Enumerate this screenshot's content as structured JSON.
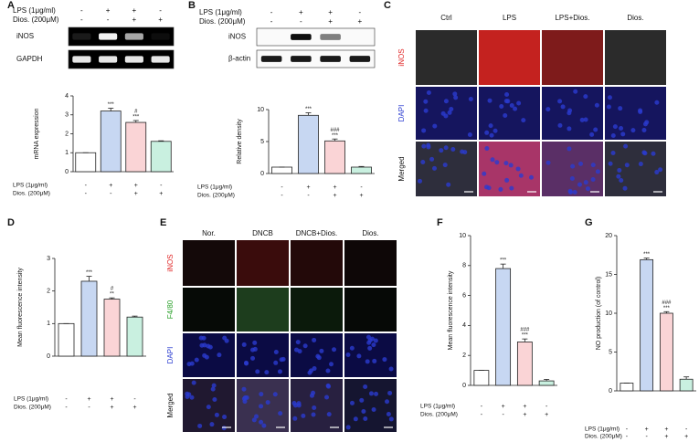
{
  "blots": [
    {
      "panel": "A",
      "treatments": [
        {
          "label": "LPS (1μg/ml)",
          "signs": [
            "-",
            "+",
            "+",
            "-"
          ]
        },
        {
          "label": "Dios. (200μM)",
          "signs": [
            "-",
            "-",
            "+",
            "+"
          ]
        }
      ],
      "rows": [
        "iNOS",
        "GAPDH"
      ]
    },
    {
      "panel": "B",
      "treatments": [
        {
          "label": "LPS (1μg/ml)",
          "signs": [
            "-",
            "+",
            "+",
            "-"
          ]
        },
        {
          "label": "Dios. (200μM)",
          "signs": [
            "-",
            "-",
            "+",
            "+"
          ]
        }
      ],
      "rows": [
        "iNOS",
        "β-actin"
      ]
    }
  ],
  "microscopy": [
    {
      "panel": "C",
      "columns": [
        "Ctrl",
        "LPS",
        "LPS+Dios.",
        "Dios."
      ],
      "rows": [
        {
          "label": "iNOS",
          "color": "#e02424"
        },
        {
          "label": "DAPI",
          "color": "#2a3bd0"
        },
        {
          "label": "Merged",
          "color": "#111111"
        }
      ]
    },
    {
      "panel": "E",
      "columns": [
        "Nor.",
        "DNCB",
        "DNCB+Dios.",
        "Dios."
      ],
      "rows": [
        {
          "label": "iNOS",
          "color": "#e02424"
        },
        {
          "label": "F4/80",
          "color": "#2aa02a"
        },
        {
          "label": "DAPI",
          "color": "#2a3bd0"
        },
        {
          "label": "Merged",
          "color": "#111111"
        }
      ]
    }
  ],
  "chart_data": [
    {
      "type": "bar",
      "ylabel": "mRNA expression",
      "ylim": [
        0,
        4
      ],
      "yticks": [
        0,
        1,
        2,
        3,
        4
      ],
      "values": [
        1,
        3.2,
        2.6,
        1.6
      ],
      "errors": [
        0,
        0.15,
        0.1,
        0.03
      ],
      "colors": [
        "#ffffff",
        "#c7d7f2",
        "#fad4d6",
        "#c9f0e0"
      ],
      "annotations": [
        [],
        [
          "***"
        ],
        [
          "#",
          "***"
        ],
        []
      ],
      "treatments": [
        {
          "label": "LPS (1μg/ml)",
          "signs": [
            "-",
            "+",
            "+",
            "-"
          ]
        },
        {
          "label": "Dios. (200μM)",
          "signs": [
            "-",
            "-",
            "+",
            "+"
          ]
        }
      ]
    },
    {
      "type": "bar",
      "ylabel": "Relative density",
      "ylim": [
        0,
        10
      ],
      "yticks": [
        0,
        5,
        10
      ],
      "values": [
        1,
        9.1,
        5.1,
        1
      ],
      "errors": [
        0,
        0.4,
        0.3,
        0.1
      ],
      "colors": [
        "#ffffff",
        "#c7d7f2",
        "#fad4d6",
        "#c9f0e0"
      ],
      "annotations": [
        [],
        [
          "***"
        ],
        [
          "###",
          "***"
        ],
        []
      ],
      "treatments": [
        {
          "label": "LPS (1μg/ml)",
          "signs": [
            "-",
            "+",
            "+",
            "-"
          ]
        },
        {
          "label": "Dios. (200μM)",
          "signs": [
            "-",
            "-",
            "+",
            "+"
          ]
        }
      ]
    },
    {
      "type": "bar",
      "panel": "D",
      "ylabel": "Mean fluorescence intensity",
      "ylim": [
        0,
        3
      ],
      "yticks": [
        0,
        1,
        2,
        3
      ],
      "values": [
        1,
        2.3,
        1.75,
        1.2
      ],
      "errors": [
        0,
        0.15,
        0.04,
        0.03
      ],
      "colors": [
        "#ffffff",
        "#c7d7f2",
        "#fad4d6",
        "#c9f0e0"
      ],
      "annotations": [
        [],
        [
          "***"
        ],
        [
          "#",
          "**"
        ],
        []
      ],
      "treatments": [
        {
          "label": "LPS (1μg/ml)",
          "signs": [
            "-",
            "+",
            "+",
            "-"
          ]
        },
        {
          "label": "Dios. (200μM)",
          "signs": [
            "-",
            "-",
            "+",
            "+"
          ]
        }
      ]
    },
    {
      "type": "bar",
      "panel": "F",
      "ylabel": "Mean fluorescence intensity",
      "ylim": [
        0,
        10
      ],
      "yticks": [
        0,
        2,
        4,
        6,
        8,
        10
      ],
      "values": [
        1,
        7.8,
        2.9,
        0.3
      ],
      "errors": [
        0,
        0.3,
        0.2,
        0.1
      ],
      "colors": [
        "#ffffff",
        "#c7d7f2",
        "#fad4d6",
        "#c9f0e0"
      ],
      "annotations": [
        [],
        [
          "***"
        ],
        [
          "###",
          "***"
        ],
        []
      ],
      "treatments": [
        {
          "label": "LPS (1μg/ml)",
          "signs": [
            "-",
            "+",
            "+",
            "-"
          ]
        },
        {
          "label": "Dios. (200μM)",
          "signs": [
            "-",
            "-",
            "+",
            "+"
          ]
        }
      ]
    },
    {
      "type": "bar",
      "panel": "G",
      "ylabel": "NO production (of control)",
      "ylim": [
        0,
        20
      ],
      "yticks": [
        0,
        5,
        10,
        15,
        20
      ],
      "values": [
        1,
        16.9,
        10,
        1.5
      ],
      "errors": [
        0,
        0.2,
        0.2,
        0.3
      ],
      "colors": [
        "#ffffff",
        "#c7d7f2",
        "#fad4d6",
        "#c9f0e0"
      ],
      "annotations": [
        [],
        [
          "***"
        ],
        [
          "###",
          "***"
        ],
        []
      ],
      "treatments": [
        {
          "label": "LPS (1μg/ml)",
          "signs": [
            "-",
            "+",
            "+",
            "-"
          ]
        },
        {
          "label": "Dios. (200μM)",
          "signs": [
            "-",
            "-",
            "+",
            "+"
          ]
        }
      ]
    }
  ]
}
